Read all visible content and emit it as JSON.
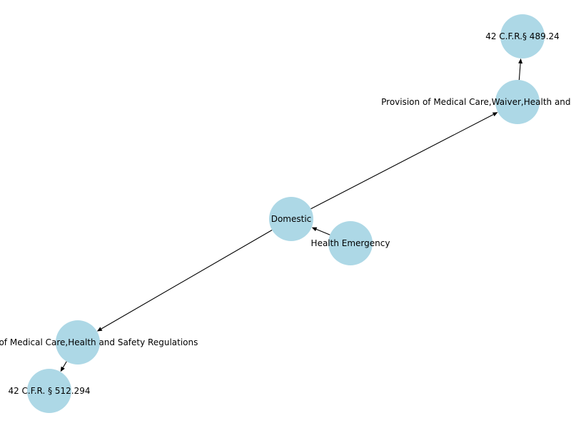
{
  "graph": {
    "node_color": "#add8e6",
    "edge_color": "#000000",
    "directed": true,
    "nodes": [
      {
        "id": "n_top",
        "label": "42 C.F.R.§ 489.24"
      },
      {
        "id": "n_provision_waiver",
        "label": "Provision of Medical Care,Waiver,Health and Safety Regulations"
      },
      {
        "id": "n_domestic",
        "label": "Domestic"
      },
      {
        "id": "n_health_emergency",
        "label": "Health Emergency"
      },
      {
        "id": "n_provision_hs",
        "label": "Provision of Medical Care,Health and Safety Regulations"
      },
      {
        "id": "n_bottom",
        "label": "42 C.F.R. § 512.294"
      }
    ],
    "edges": [
      {
        "from": "n_health_emergency",
        "to": "n_domestic"
      },
      {
        "from": "n_domestic",
        "to": "n_provision_waiver"
      },
      {
        "from": "n_provision_waiver",
        "to": "n_top"
      },
      {
        "from": "n_domestic",
        "to": "n_provision_hs"
      },
      {
        "from": "n_provision_hs",
        "to": "n_bottom"
      }
    ]
  }
}
